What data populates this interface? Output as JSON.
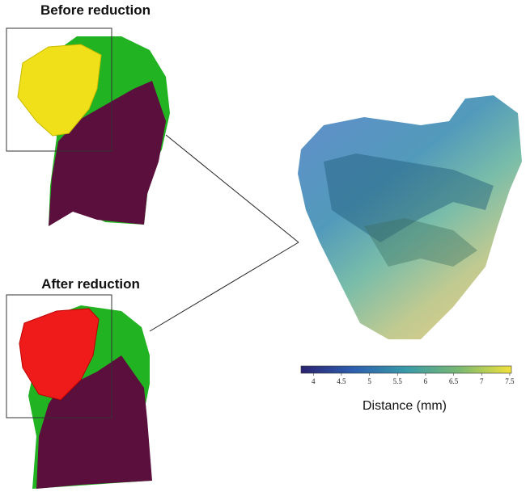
{
  "panels": {
    "before": {
      "title": "Before reduction"
    },
    "after": {
      "title": "After reduction"
    }
  },
  "colorbar": {
    "label": "Distance (mm)",
    "min": 3.78,
    "max": 7.53,
    "ticks": [
      4,
      4.5,
      5,
      5.5,
      6,
      6.5,
      7,
      7.5
    ],
    "colors": [
      "#2b2370",
      "#2d5fae",
      "#3a9aa8",
      "#79b873",
      "#f2e23c"
    ]
  }
}
